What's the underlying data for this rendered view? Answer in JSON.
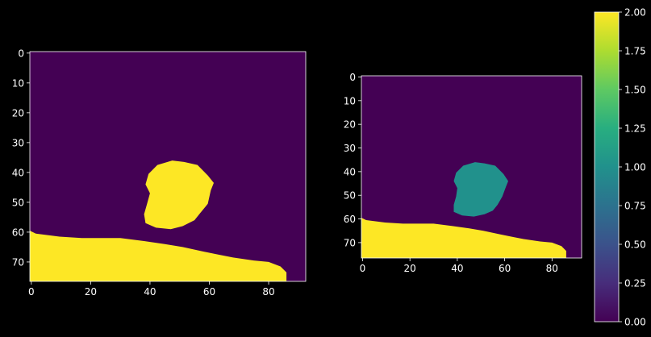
{
  "colors": {
    "background": "#000000",
    "axis": "#ffffff",
    "tick_text": "#ffffff",
    "viridis_0": "#440154",
    "viridis_1": "#21918c",
    "viridis_2": "#fde725"
  },
  "chart_data": [
    {
      "type": "heatmap",
      "title": "",
      "xlabel": "",
      "ylabel": "",
      "xlim": [
        -0.5,
        92.5
      ],
      "ylim": [
        76.5,
        -0.5
      ],
      "x_ticks": [
        0,
        20,
        40,
        60,
        80
      ],
      "y_ticks": [
        0,
        10,
        20,
        30,
        40,
        50,
        60,
        70
      ],
      "grid": false,
      "description_of_values": "label mask; background 0, blob 2, ground 2",
      "regions": [
        {
          "label": "background",
          "value": 0
        },
        {
          "label": "blob",
          "value": 2,
          "outline": [
            [
              47.5,
              36
            ],
            [
              51.5,
              36.5
            ],
            [
              56,
              37.5
            ],
            [
              59.5,
              41
            ],
            [
              61.5,
              43.5
            ],
            [
              60.5,
              46
            ],
            [
              59.5,
              50.5
            ],
            [
              57,
              53.5
            ],
            [
              55,
              56
            ],
            [
              51,
              58
            ],
            [
              47,
              59
            ],
            [
              42,
              58.5
            ],
            [
              38.5,
              57
            ],
            [
              38,
              54
            ],
            [
              39,
              50.5
            ],
            [
              40,
              47
            ],
            [
              38.5,
              44
            ],
            [
              39.5,
              40.5
            ],
            [
              42.5,
              37.5
            ]
          ]
        },
        {
          "label": "ground",
          "value": 2,
          "outline": [
            [
              -0.5,
              59.5
            ],
            [
              1.5,
              60.5
            ],
            [
              9.5,
              61.5
            ],
            [
              17,
              62
            ],
            [
              30,
              62
            ],
            [
              38,
              63
            ],
            [
              45,
              64
            ],
            [
              51,
              65
            ],
            [
              58,
              66.5
            ],
            [
              63,
              67.5
            ],
            [
              68,
              68.5
            ],
            [
              75,
              69.5
            ],
            [
              80,
              70
            ],
            [
              84,
              71.5
            ],
            [
              86,
              73.5
            ],
            [
              86,
              76.5
            ],
            [
              -0.5,
              76.5
            ]
          ]
        }
      ]
    },
    {
      "type": "heatmap",
      "title": "",
      "xlabel": "",
      "ylabel": "",
      "xlim": [
        -0.5,
        92.5
      ],
      "ylim": [
        76.5,
        -0.5
      ],
      "x_ticks": [
        0,
        20,
        40,
        60,
        80
      ],
      "y_ticks": [
        0,
        10,
        20,
        30,
        40,
        50,
        60,
        70
      ],
      "grid": false,
      "description_of_values": "label mask; background 0, blob 1, ground 2",
      "regions": [
        {
          "label": "background",
          "value": 0
        },
        {
          "label": "blob",
          "value": 1,
          "outline": [
            [
              47.5,
              36
            ],
            [
              51.5,
              36.5
            ],
            [
              56,
              37.5
            ],
            [
              59.5,
              41
            ],
            [
              61.5,
              44
            ],
            [
              60.5,
              46.5
            ],
            [
              59,
              50.5
            ],
            [
              57,
              54
            ],
            [
              55,
              56.5
            ],
            [
              51.5,
              58
            ],
            [
              47,
              59
            ],
            [
              42,
              58.5
            ],
            [
              38.5,
              57
            ],
            [
              38.5,
              54
            ],
            [
              39.5,
              50.5
            ],
            [
              40,
              47
            ],
            [
              38.5,
              44
            ],
            [
              39.5,
              40.5
            ],
            [
              42.5,
              37.5
            ]
          ]
        },
        {
          "label": "ground",
          "value": 2,
          "outline": [
            [
              -0.5,
              59.5
            ],
            [
              1.5,
              60.5
            ],
            [
              9.5,
              61.5
            ],
            [
              17,
              62
            ],
            [
              30,
              62
            ],
            [
              38,
              63
            ],
            [
              45,
              64
            ],
            [
              51,
              65
            ],
            [
              58,
              66.5
            ],
            [
              63,
              67.5
            ],
            [
              68,
              68.5
            ],
            [
              75,
              69.5
            ],
            [
              80,
              70
            ],
            [
              84,
              71.5
            ],
            [
              86,
              73.5
            ],
            [
              86,
              76.5
            ],
            [
              -0.5,
              76.5
            ]
          ]
        }
      ]
    }
  ],
  "colorbar": {
    "colormap": "viridis",
    "range": [
      0.0,
      2.0
    ],
    "ticks": [
      0.0,
      0.25,
      0.5,
      0.75,
      1.0,
      1.25,
      1.5,
      1.75,
      2.0
    ],
    "tick_labels": [
      "0.00",
      "0.25",
      "0.50",
      "0.75",
      "1.00",
      "1.25",
      "1.50",
      "1.75",
      "2.00"
    ]
  }
}
